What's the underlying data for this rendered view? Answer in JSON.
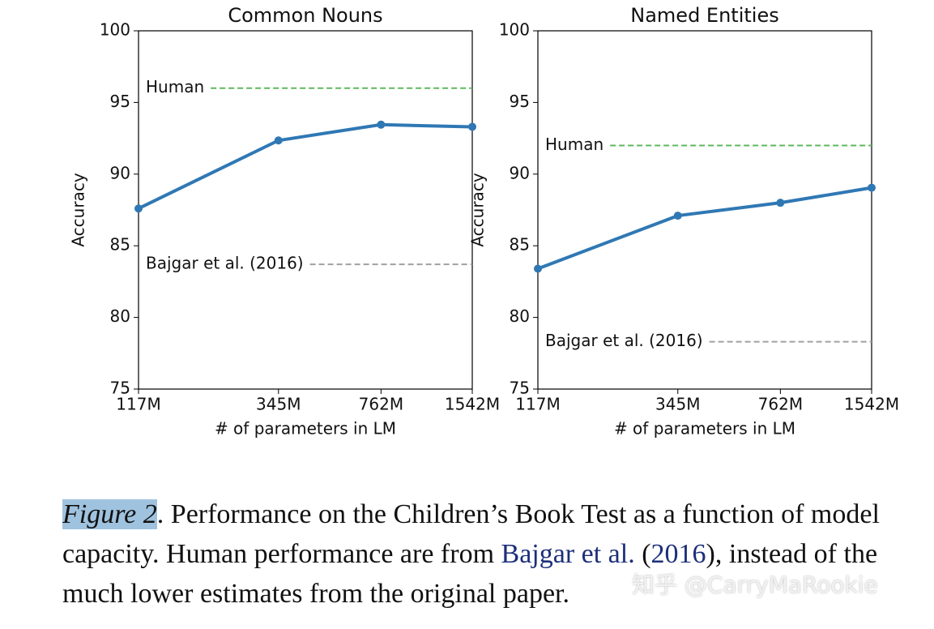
{
  "chart_data": [
    {
      "type": "line",
      "title": "Common Nouns",
      "xlabel": "# of parameters in LM",
      "ylabel": "Accuracy",
      "xscale": "log",
      "x": [
        117,
        345,
        762,
        1542
      ],
      "values": [
        87.6,
        92.35,
        93.45,
        93.3
      ],
      "color": "#2f78b4",
      "xlim": [
        117,
        1542
      ],
      "xticks": [
        {
          "value": 117,
          "label": "117M"
        },
        {
          "value": 345,
          "label": "345M"
        },
        {
          "value": 762,
          "label": "762M"
        },
        {
          "value": 1542,
          "label": "1542M"
        }
      ],
      "ylim": [
        75,
        100
      ],
      "yticks": [
        75,
        80,
        85,
        90,
        95,
        100
      ],
      "hlines": [
        {
          "label": "Human",
          "value": 96,
          "color": "#5cb85c"
        },
        {
          "label": "Bajgar et al. (2016)",
          "value": 83.7,
          "color": "#a0a0a0"
        }
      ]
    },
    {
      "type": "line",
      "title": "Named Entities",
      "xlabel": "# of parameters in LM",
      "ylabel": "Accuracy",
      "xscale": "log",
      "x": [
        117,
        345,
        762,
        1542
      ],
      "values": [
        83.4,
        87.1,
        88.0,
        89.05
      ],
      "color": "#2f78b4",
      "xlim": [
        117,
        1542
      ],
      "xticks": [
        {
          "value": 117,
          "label": "117M"
        },
        {
          "value": 345,
          "label": "345M"
        },
        {
          "value": 762,
          "label": "762M"
        },
        {
          "value": 1542,
          "label": "1542M"
        }
      ],
      "ylim": [
        75,
        100
      ],
      "yticks": [
        75,
        80,
        85,
        90,
        95,
        100
      ],
      "hlines": [
        {
          "label": "Human",
          "value": 92,
          "color": "#5cb85c"
        },
        {
          "label": "Bajgar et al. (2016)",
          "value": 78.3,
          "color": "#a0a0a0"
        }
      ]
    }
  ],
  "caption": {
    "label": "Figure 2",
    "parts": [
      ". Performance on the Children’s Book Test as a function of model capacity. Human performance are from ",
      "Bajgar et al.",
      " (",
      "2016",
      "), instead of the much lower estimates from the original paper."
    ]
  },
  "watermark": "知乎 @CarryMaRookie"
}
